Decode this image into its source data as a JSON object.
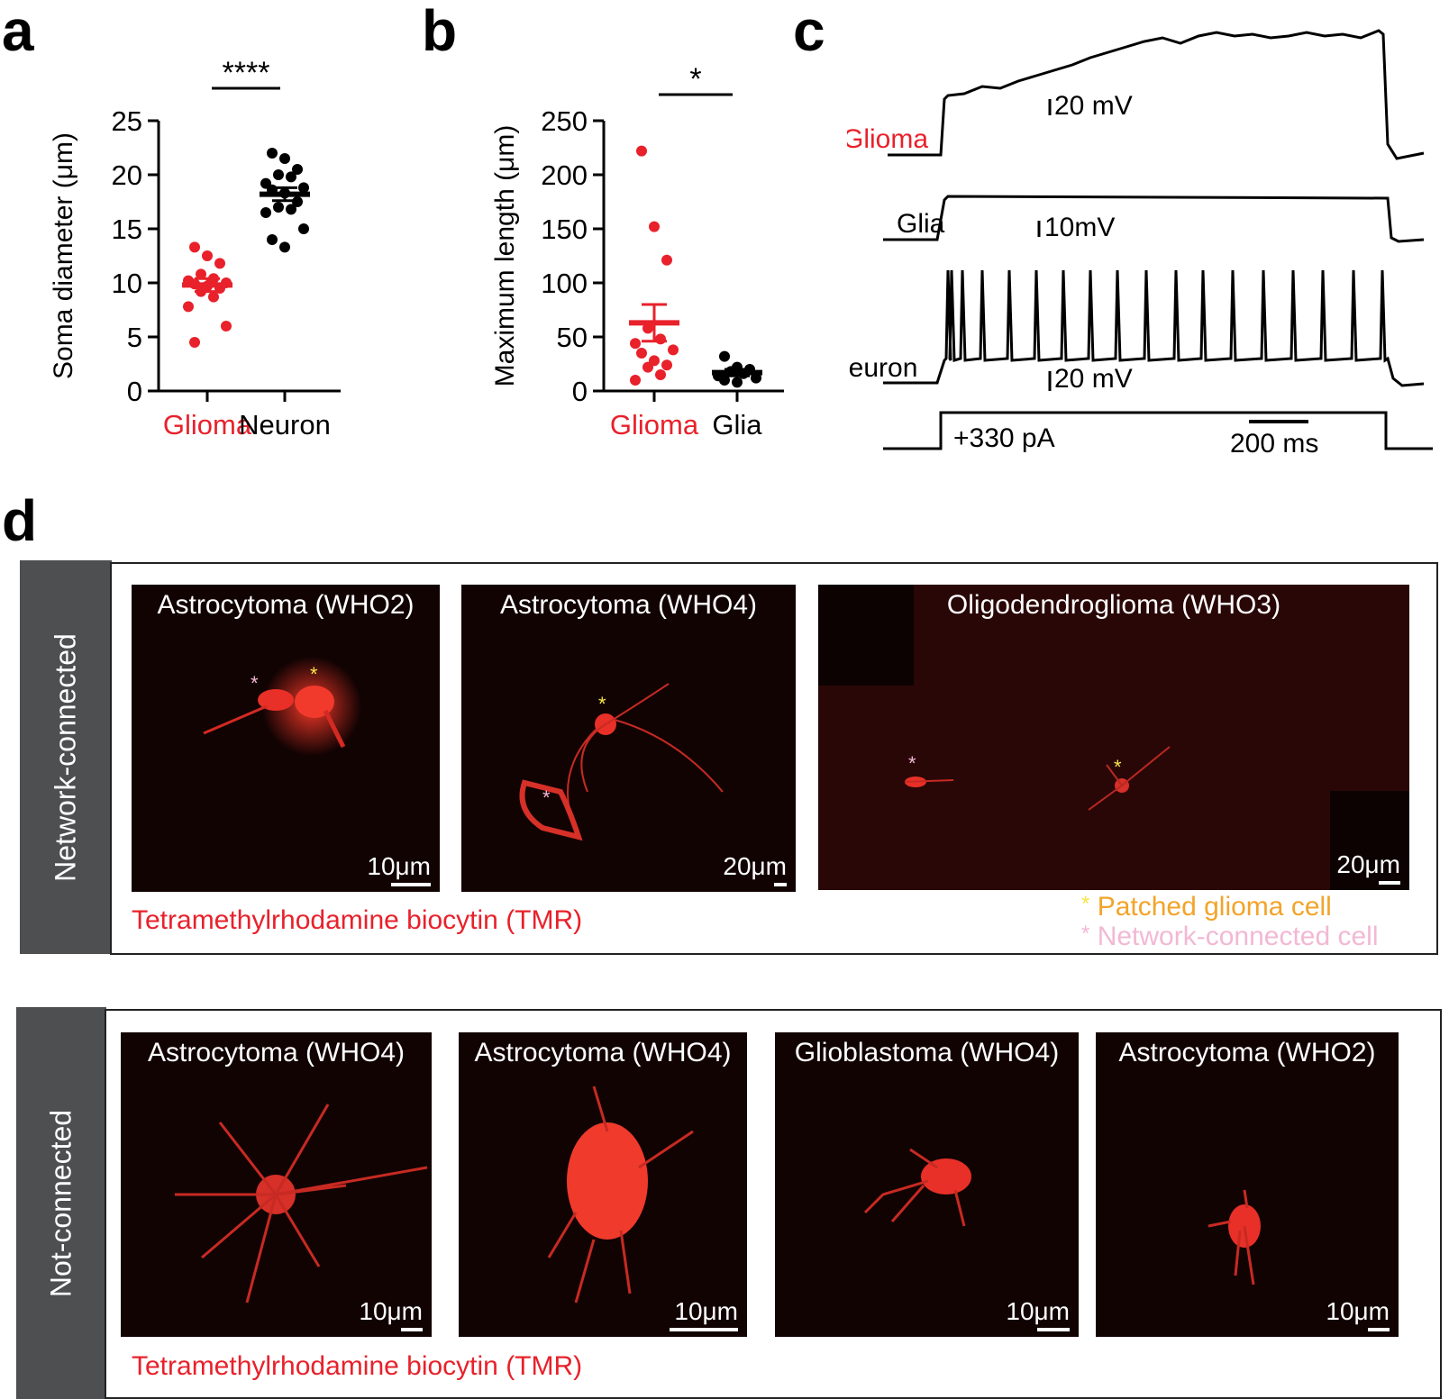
{
  "panels": {
    "a": {
      "letter": "a",
      "significance": "****",
      "chart_data": {
        "type": "scatter",
        "ylabel": "Soma diameter (μm)",
        "ylim": [
          0,
          25
        ],
        "yticks": [
          "0",
          "5",
          "10",
          "15",
          "20",
          "25"
        ],
        "categories": [
          "Glioma",
          "Neuron"
        ],
        "colors": {
          "Glioma": "#e8212b",
          "Neuron": "#000000"
        },
        "series": [
          {
            "name": "Glioma",
            "values": [
              13.3,
              12.5,
              11.8,
              10.8,
              10.4,
              10.2,
              10.0,
              9.9,
              9.7,
              9.5,
              9.2,
              8.7,
              7.8,
              6.0,
              4.5
            ],
            "mean": 9.8,
            "sem": 0.6
          },
          {
            "name": "Neuron",
            "values": [
              22.0,
              21.5,
              20.5,
              20.0,
              19.8,
              19.2,
              18.8,
              18.6,
              18.3,
              17.5,
              17.0,
              16.8,
              16.5,
              15.0,
              14.0,
              13.3
            ],
            "mean": 18.2,
            "sem": 0.6
          }
        ]
      }
    },
    "b": {
      "letter": "b",
      "significance": "*",
      "chart_data": {
        "type": "scatter",
        "ylabel": "Maximum length (μm)",
        "ylim": [
          0,
          250
        ],
        "yticks": [
          "0",
          "50",
          "100",
          "150",
          "200",
          "250"
        ],
        "categories": [
          "Glioma",
          "Glia"
        ],
        "colors": {
          "Glioma": "#e8212b",
          "Glia": "#000000"
        },
        "series": [
          {
            "name": "Glioma",
            "values": [
              222,
              152,
              121,
              58,
              48,
              44,
              38,
              35,
              28,
              24,
              22,
              15,
              10
            ],
            "mean": 63,
            "sem": 17
          },
          {
            "name": "Glia",
            "values": [
              32,
              22,
              20,
              18,
              16,
              14,
              12,
              10,
              8
            ],
            "mean": 17,
            "sem": 3
          }
        ]
      }
    },
    "c": {
      "letter": "c",
      "traces": [
        {
          "name": "Glioma",
          "scale": "20 mV"
        },
        {
          "name": "Glia",
          "scale": "10mV"
        },
        {
          "name": "Neuron",
          "scale": "20 mV"
        }
      ],
      "stimulus": "+330 pA",
      "time_scale": "200 ms"
    },
    "d": {
      "letter": "d",
      "connected": {
        "side_label": "Network-connected",
        "images": [
          {
            "title": "Astrocytoma (WHO2)",
            "scale": "10μm"
          },
          {
            "title": "Astrocytoma (WHO4)",
            "scale": "20μm"
          },
          {
            "title": "Oligodendroglioma (WHO3)",
            "scale": "20μm"
          }
        ],
        "stain_label": "Tetramethylrhodamine biocytin (TMR)",
        "legend": [
          {
            "marker": "*",
            "label": "Patched glioma cell",
            "marker_color": "#f7e64a",
            "text_color": "#f2a42a"
          },
          {
            "marker": "*",
            "label": "Network-connected cell",
            "marker_color": "#f2b8d4",
            "text_color": "#f2b8d4"
          }
        ]
      },
      "not_connected": {
        "side_label": "Not-connected",
        "images": [
          {
            "title": "Astrocytoma  (WHO4)",
            "scale": "10μm"
          },
          {
            "title": "Astrocytoma (WHO4)",
            "scale": "10μm"
          },
          {
            "title": "Glioblastoma  (WHO4)",
            "scale": "10μm"
          },
          {
            "title": "Astrocytoma  (WHO2)",
            "scale": "10μm"
          }
        ],
        "stain_label": "Tetramethylrhodamine biocytin (TMR)"
      }
    }
  }
}
